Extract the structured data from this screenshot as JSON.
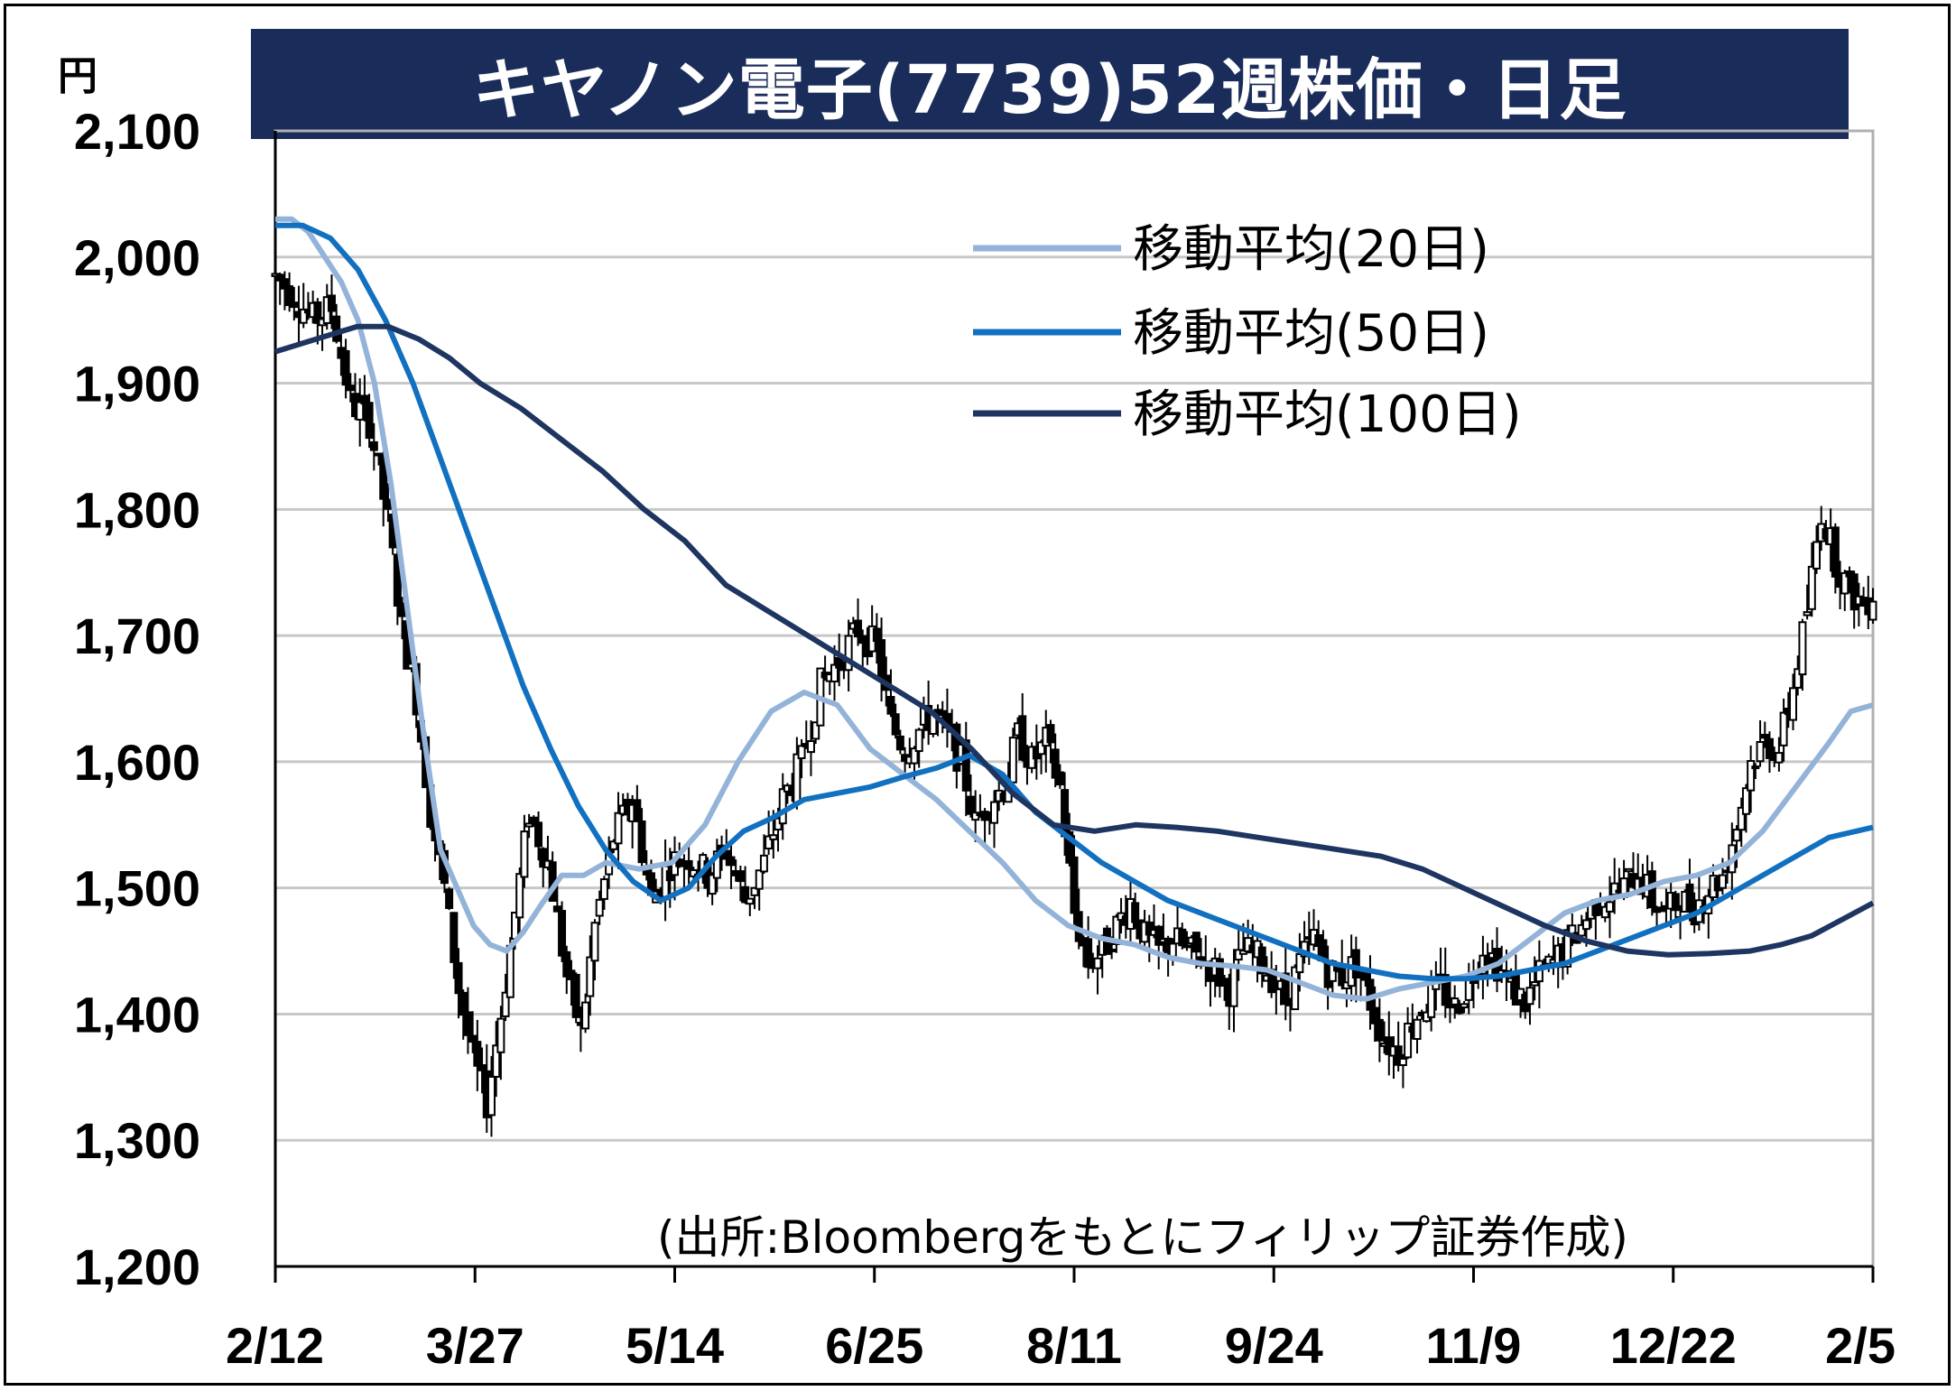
{
  "chart_data": {
    "type": "candlestick",
    "title": "キヤノン電子(7739)52週株価・日足",
    "unit": "円",
    "source": "(出所:Bloombergをもとにフィリップ証券作成)",
    "ylim": [
      1200,
      2100
    ],
    "y_ticks": [
      "1,200",
      "1,300",
      "1,400",
      "1,500",
      "1,600",
      "1,700",
      "1,800",
      "1,900",
      "2,000",
      "2,100"
    ],
    "x_tick_labels": [
      "2/12",
      "3/27",
      "5/14",
      "6/25",
      "8/11",
      "9/24",
      "11/9",
      "12/22",
      "2/5"
    ],
    "grid": true,
    "legend_position": "top-right",
    "legend": [
      {
        "name": "移動平均(20日)",
        "color": "#93b3d8"
      },
      {
        "name": "移動平均(50日)",
        "color": "#1270c0"
      },
      {
        "name": "移動平均(100日)",
        "color": "#1d3560"
      }
    ],
    "price_anchors": [
      [
        0,
        1985
      ],
      [
        4,
        1970
      ],
      [
        8,
        1950
      ],
      [
        12,
        1960
      ],
      [
        16,
        1885
      ],
      [
        20,
        1870
      ],
      [
        24,
        1790
      ],
      [
        27,
        1705
      ],
      [
        30,
        1650
      ],
      [
        33,
        1560
      ],
      [
        36,
        1500
      ],
      [
        39,
        1420
      ],
      [
        42,
        1365
      ],
      [
        45,
        1330
      ],
      [
        48,
        1400
      ],
      [
        51,
        1480
      ],
      [
        54,
        1560
      ],
      [
        58,
        1520
      ],
      [
        62,
        1430
      ],
      [
        65,
        1385
      ],
      [
        68,
        1470
      ],
      [
        72,
        1540
      ],
      [
        76,
        1570
      ],
      [
        80,
        1490
      ],
      [
        84,
        1520
      ],
      [
        88,
        1525
      ],
      [
        92,
        1510
      ],
      [
        96,
        1530
      ],
      [
        100,
        1490
      ],
      [
        104,
        1520
      ],
      [
        108,
        1570
      ],
      [
        112,
        1600
      ],
      [
        116,
        1660
      ],
      [
        120,
        1680
      ],
      [
        124,
        1705
      ],
      [
        128,
        1690
      ],
      [
        131,
        1630
      ],
      [
        134,
        1610
      ],
      [
        137,
        1625
      ],
      [
        140,
        1640
      ],
      [
        143,
        1620
      ],
      [
        146,
        1600
      ],
      [
        149,
        1550
      ],
      [
        152,
        1570
      ],
      [
        155,
        1580
      ],
      [
        158,
        1620
      ],
      [
        161,
        1600
      ],
      [
        164,
        1615
      ],
      [
        167,
        1580
      ],
      [
        170,
        1480
      ],
      [
        173,
        1440
      ],
      [
        176,
        1450
      ],
      [
        179,
        1470
      ],
      [
        182,
        1490
      ],
      [
        185,
        1460
      ],
      [
        188,
        1450
      ],
      [
        191,
        1460
      ],
      [
        194,
        1450
      ],
      [
        197,
        1445
      ],
      [
        200,
        1435
      ],
      [
        203,
        1420
      ],
      [
        206,
        1450
      ],
      [
        209,
        1445
      ],
      [
        212,
        1430
      ],
      [
        215,
        1410
      ],
      [
        218,
        1440
      ],
      [
        221,
        1460
      ],
      [
        224,
        1435
      ],
      [
        227,
        1430
      ],
      [
        230,
        1440
      ],
      [
        233,
        1410
      ],
      [
        236,
        1380
      ],
      [
        239,
        1370
      ],
      [
        242,
        1395
      ],
      [
        245,
        1410
      ],
      [
        248,
        1420
      ],
      [
        251,
        1405
      ],
      [
        254,
        1425
      ],
      [
        257,
        1455
      ],
      [
        260,
        1440
      ],
      [
        263,
        1420
      ],
      [
        266,
        1410
      ],
      [
        269,
        1430
      ],
      [
        272,
        1440
      ],
      [
        275,
        1455
      ],
      [
        278,
        1470
      ],
      [
        281,
        1490
      ],
      [
        284,
        1495
      ],
      [
        287,
        1500
      ],
      [
        290,
        1515
      ],
      [
        293,
        1490
      ],
      [
        296,
        1480
      ],
      [
        299,
        1490
      ],
      [
        302,
        1485
      ],
      [
        305,
        1500
      ],
      [
        308,
        1510
      ],
      [
        311,
        1550
      ],
      [
        314,
        1600
      ],
      [
        317,
        1615
      ],
      [
        320,
        1610
      ],
      [
        323,
        1660
      ],
      [
        326,
        1720
      ],
      [
        329,
        1800
      ],
      [
        332,
        1760
      ],
      [
        335,
        1735
      ],
      [
        338,
        1725
      ],
      [
        340,
        1735
      ]
    ],
    "moving_averages": {
      "ma20": [
        [
          0,
          2030
        ],
        [
          3,
          2030
        ],
        [
          6,
          2020
        ],
        [
          9,
          2000
        ],
        [
          12,
          1980
        ],
        [
          15,
          1950
        ],
        [
          18,
          1900
        ],
        [
          21,
          1820
        ],
        [
          24,
          1720
        ],
        [
          27,
          1620
        ],
        [
          30,
          1530
        ],
        [
          33,
          1500
        ],
        [
          36,
          1470
        ],
        [
          39,
          1455
        ],
        [
          42,
          1450
        ],
        [
          45,
          1465
        ],
        [
          48,
          1485
        ],
        [
          52,
          1510
        ],
        [
          56,
          1510
        ],
        [
          60,
          1520
        ],
        [
          66,
          1515
        ],
        [
          72,
          1520
        ],
        [
          78,
          1550
        ],
        [
          84,
          1600
        ],
        [
          90,
          1640
        ],
        [
          96,
          1655
        ],
        [
          102,
          1645
        ],
        [
          108,
          1610
        ],
        [
          114,
          1590
        ],
        [
          120,
          1570
        ],
        [
          126,
          1545
        ],
        [
          132,
          1520
        ],
        [
          138,
          1490
        ],
        [
          144,
          1470
        ],
        [
          150,
          1460
        ],
        [
          156,
          1455
        ],
        [
          162,
          1445
        ],
        [
          168,
          1440
        ],
        [
          174,
          1438
        ],
        [
          180,
          1435
        ],
        [
          186,
          1425
        ],
        [
          192,
          1415
        ],
        [
          198,
          1412
        ],
        [
          204,
          1420
        ],
        [
          210,
          1425
        ],
        [
          216,
          1430
        ],
        [
          222,
          1440
        ],
        [
          228,
          1460
        ],
        [
          234,
          1480
        ],
        [
          240,
          1490
        ],
        [
          246,
          1495
        ],
        [
          252,
          1505
        ],
        [
          258,
          1510
        ],
        [
          264,
          1520
        ],
        [
          270,
          1545
        ],
        [
          276,
          1580
        ],
        [
          282,
          1615
        ],
        [
          286,
          1640
        ],
        [
          290,
          1645
        ]
      ],
      "ma50": [
        [
          0,
          2025
        ],
        [
          5,
          2025
        ],
        [
          10,
          2015
        ],
        [
          15,
          1990
        ],
        [
          20,
          1950
        ],
        [
          25,
          1900
        ],
        [
          30,
          1840
        ],
        [
          35,
          1780
        ],
        [
          40,
          1720
        ],
        [
          45,
          1660
        ],
        [
          50,
          1610
        ],
        [
          55,
          1565
        ],
        [
          60,
          1530
        ],
        [
          65,
          1505
        ],
        [
          70,
          1490
        ],
        [
          75,
          1500
        ],
        [
          80,
          1525
        ],
        [
          85,
          1545
        ],
        [
          90,
          1555
        ],
        [
          96,
          1570
        ],
        [
          102,
          1575
        ],
        [
          108,
          1580
        ],
        [
          114,
          1588
        ],
        [
          120,
          1595
        ],
        [
          126,
          1605
        ],
        [
          132,
          1590
        ],
        [
          138,
          1560
        ],
        [
          144,
          1540
        ],
        [
          150,
          1520
        ],
        [
          156,
          1505
        ],
        [
          162,
          1490
        ],
        [
          168,
          1480
        ],
        [
          174,
          1470
        ],
        [
          180,
          1460
        ],
        [
          186,
          1450
        ],
        [
          192,
          1440
        ],
        [
          198,
          1435
        ],
        [
          204,
          1430
        ],
        [
          210,
          1428
        ],
        [
          216,
          1428
        ],
        [
          222,
          1430
        ],
        [
          228,
          1435
        ],
        [
          234,
          1440
        ],
        [
          240,
          1450
        ],
        [
          246,
          1460
        ],
        [
          252,
          1470
        ],
        [
          258,
          1480
        ],
        [
          264,
          1495
        ],
        [
          270,
          1510
        ],
        [
          276,
          1525
        ],
        [
          282,
          1540
        ],
        [
          290,
          1548
        ]
      ],
      "ma100": [
        [
          0,
          1925
        ],
        [
          8,
          1935
        ],
        [
          16,
          1945
        ],
        [
          22,
          1945
        ],
        [
          28,
          1935
        ],
        [
          34,
          1920
        ],
        [
          40,
          1900
        ],
        [
          48,
          1880
        ],
        [
          56,
          1855
        ],
        [
          64,
          1830
        ],
        [
          72,
          1800
        ],
        [
          80,
          1775
        ],
        [
          88,
          1740
        ],
        [
          96,
          1720
        ],
        [
          104,
          1700
        ],
        [
          112,
          1680
        ],
        [
          120,
          1660
        ],
        [
          128,
          1640
        ],
        [
          136,
          1610
        ],
        [
          144,
          1575
        ],
        [
          152,
          1550
        ],
        [
          160,
          1545
        ],
        [
          168,
          1550
        ],
        [
          176,
          1548
        ],
        [
          184,
          1545
        ],
        [
          192,
          1540
        ],
        [
          200,
          1535
        ],
        [
          208,
          1530
        ],
        [
          216,
          1525
        ],
        [
          224,
          1515
        ],
        [
          232,
          1500
        ],
        [
          240,
          1485
        ],
        [
          248,
          1470
        ],
        [
          256,
          1458
        ],
        [
          264,
          1450
        ],
        [
          272,
          1447
        ],
        [
          280,
          1448
        ],
        [
          288,
          1450
        ],
        [
          294,
          1455
        ],
        [
          300,
          1462
        ],
        [
          306,
          1475
        ],
        [
          312,
          1488
        ]
      ]
    }
  }
}
